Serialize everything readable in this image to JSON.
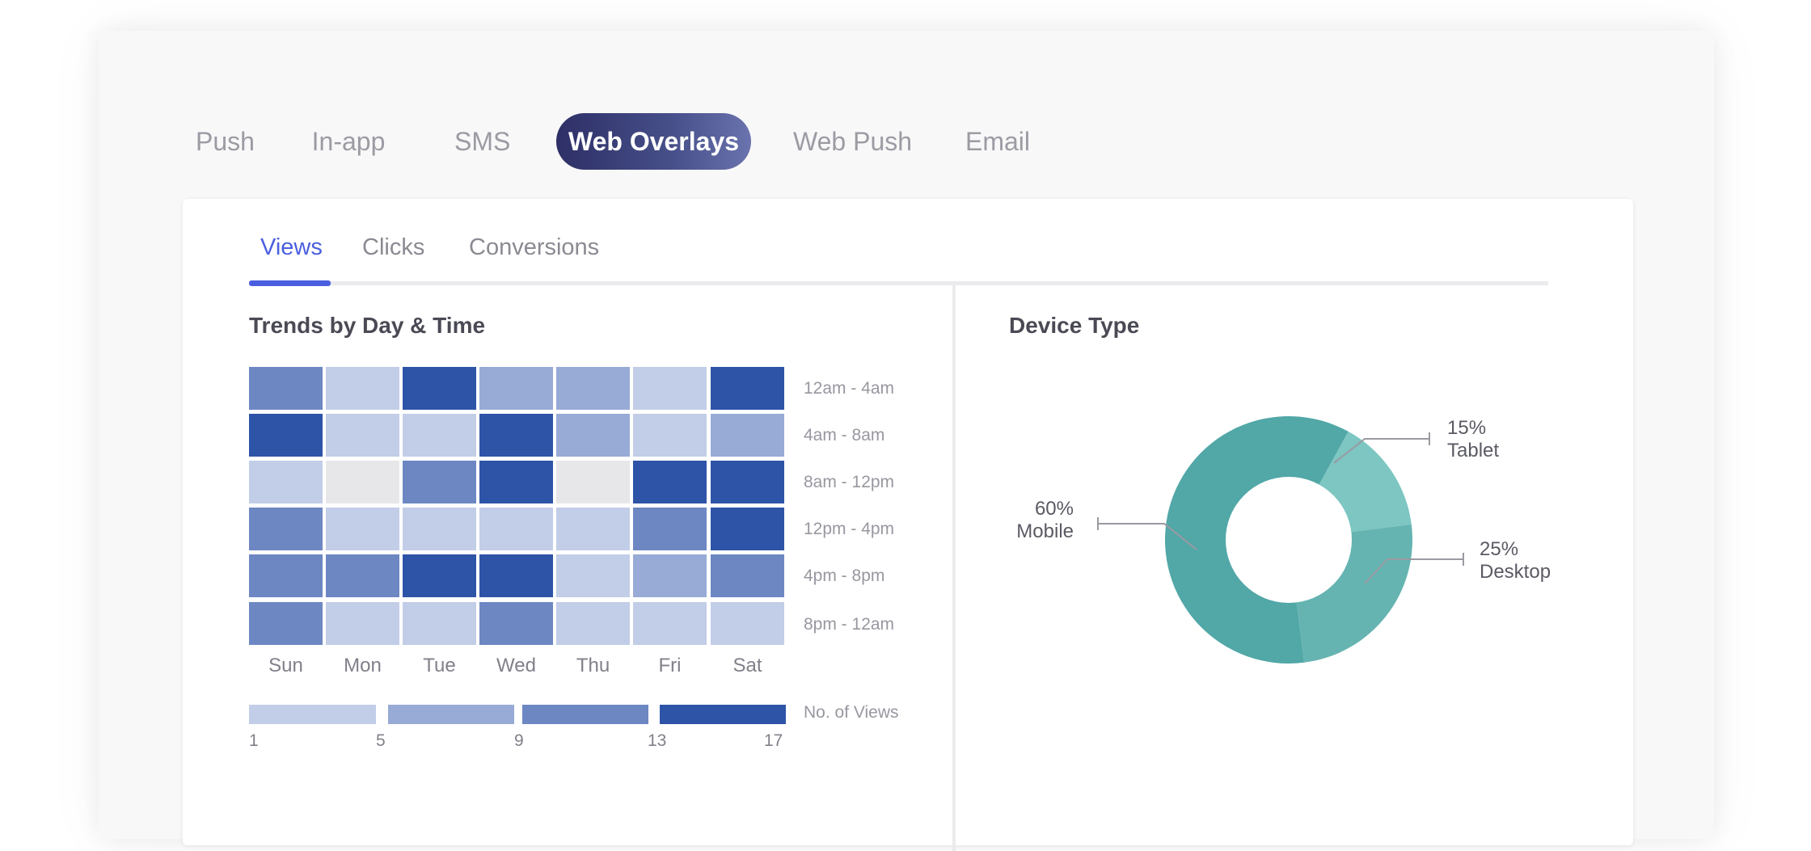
{
  "channel_tabs": [
    {
      "label": "Push",
      "active": false
    },
    {
      "label": "In-app",
      "active": false
    },
    {
      "label": "SMS",
      "active": false
    },
    {
      "label": "Web Overlays",
      "active": true
    },
    {
      "label": "Web Push",
      "active": false
    },
    {
      "label": "Email",
      "active": false
    }
  ],
  "metric_tabs": [
    {
      "label": "Views",
      "active": true
    },
    {
      "label": "Clicks",
      "active": false
    },
    {
      "label": "Conversions",
      "active": false
    }
  ],
  "heatmap": {
    "title": "Trends by Day & Time",
    "days": [
      "Sun",
      "Mon",
      "Tue",
      "Wed",
      "Thu",
      "Fri",
      "Sat"
    ],
    "time_slots": [
      "12am - 4am",
      "4am - 8am",
      "8am - 12pm",
      "12pm - 4pm",
      "4pm - 8pm",
      "8pm - 12am"
    ],
    "levels": [
      [
        3,
        1,
        4,
        2,
        2,
        1,
        4
      ],
      [
        4,
        1,
        1,
        4,
        2,
        1,
        2
      ],
      [
        1,
        0,
        3,
        4,
        0,
        4,
        4
      ],
      [
        3,
        1,
        1,
        1,
        1,
        3,
        4
      ],
      [
        3,
        3,
        4,
        4,
        1,
        2,
        3
      ],
      [
        3,
        1,
        1,
        3,
        1,
        1,
        1
      ]
    ],
    "level_colors": [
      "#e7e7e9",
      "#c2cde7",
      "#98abd6",
      "#6d87c3",
      "#2e54a8"
    ],
    "legend": {
      "title": "No. of Views",
      "ticks": [
        "1",
        "5",
        "9",
        "13",
        "17"
      ]
    }
  },
  "device_chart": {
    "title": "Device Type",
    "segments": [
      {
        "percent": "60%",
        "name": "Mobile",
        "value": 60,
        "color": "#52a7a7"
      },
      {
        "percent": "15%",
        "name": "Tablet",
        "value": 15,
        "color": "#7dc6c2"
      },
      {
        "percent": "25%",
        "name": "Desktop",
        "value": 25,
        "color": "#65b4b1"
      }
    ]
  },
  "chart_data": [
    {
      "type": "heatmap",
      "title": "Trends by Day & Time",
      "x": [
        "Sun",
        "Mon",
        "Tue",
        "Wed",
        "Thu",
        "Fri",
        "Sat"
      ],
      "y": [
        "12am - 4am",
        "4am - 8am",
        "8am - 12pm",
        "12pm - 4pm",
        "4pm - 8pm",
        "8pm - 12am"
      ],
      "values_bin_index": [
        [
          3,
          1,
          4,
          2,
          2,
          1,
          4
        ],
        [
          4,
          1,
          1,
          4,
          2,
          1,
          2
        ],
        [
          1,
          0,
          3,
          4,
          0,
          4,
          4
        ],
        [
          3,
          1,
          1,
          1,
          1,
          3,
          4
        ],
        [
          3,
          3,
          4,
          4,
          1,
          2,
          3
        ],
        [
          3,
          1,
          1,
          3,
          1,
          1,
          1
        ]
      ],
      "legend_label": "No. of Views",
      "bins": [
        1,
        5,
        9,
        13,
        17
      ]
    },
    {
      "type": "pie",
      "title": "Device Type",
      "labels": [
        "Mobile",
        "Tablet",
        "Desktop"
      ],
      "values": [
        60,
        15,
        25
      ]
    }
  ]
}
